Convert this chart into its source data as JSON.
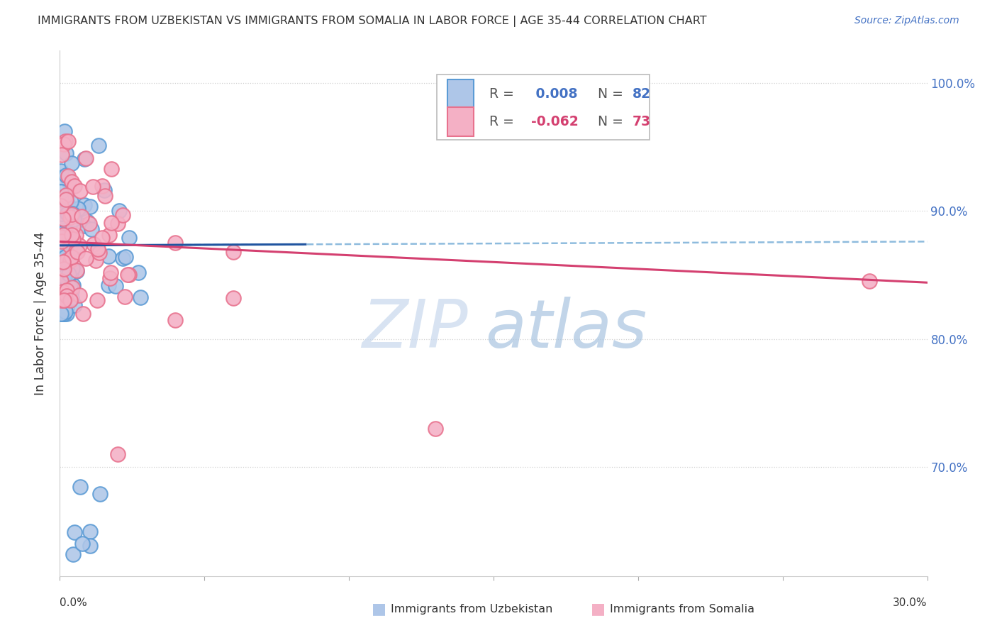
{
  "title": "IMMIGRANTS FROM UZBEKISTAN VS IMMIGRANTS FROM SOMALIA IN LABOR FORCE | AGE 35-44 CORRELATION CHART",
  "source": "Source: ZipAtlas.com",
  "ylabel": "In Labor Force | Age 35-44",
  "xmin": 0.0,
  "xmax": 0.3,
  "ymin": 0.615,
  "ymax": 1.025,
  "series_uz": {
    "name": "Immigrants from Uzbekistan",
    "color_face": "#aec6e8",
    "color_edge": "#5b9bd5",
    "R": 0.008,
    "N": 82,
    "trend_color_solid": "#2155a0",
    "trend_color_dash": "#7ab0d8",
    "trend_y0": 0.873,
    "trend_y1": 0.876
  },
  "series_so": {
    "name": "Immigrants from Somalia",
    "color_face": "#f4b0c5",
    "color_edge": "#e8728e",
    "R": -0.062,
    "N": 73,
    "trend_color_solid": "#d44070",
    "trend_y0": 0.876,
    "trend_y1": 0.844
  },
  "watermark_zip": "ZIP",
  "watermark_atlas": "atlas",
  "grid_color": "#cccccc",
  "background_color": "#ffffff",
  "title_color": "#333333",
  "right_axis_color": "#4472c4",
  "legend_label1_r": "R = ",
  "legend_label1_rv": " 0.008",
  "legend_label1_n": "  N = ",
  "legend_label1_nv": "82",
  "legend_label2_r": "R = ",
  "legend_label2_rv": "-0.062",
  "legend_label2_n": "  N = ",
  "legend_label2_nv": "73",
  "color_blue": "#4472c4",
  "color_pink": "#d44070"
}
